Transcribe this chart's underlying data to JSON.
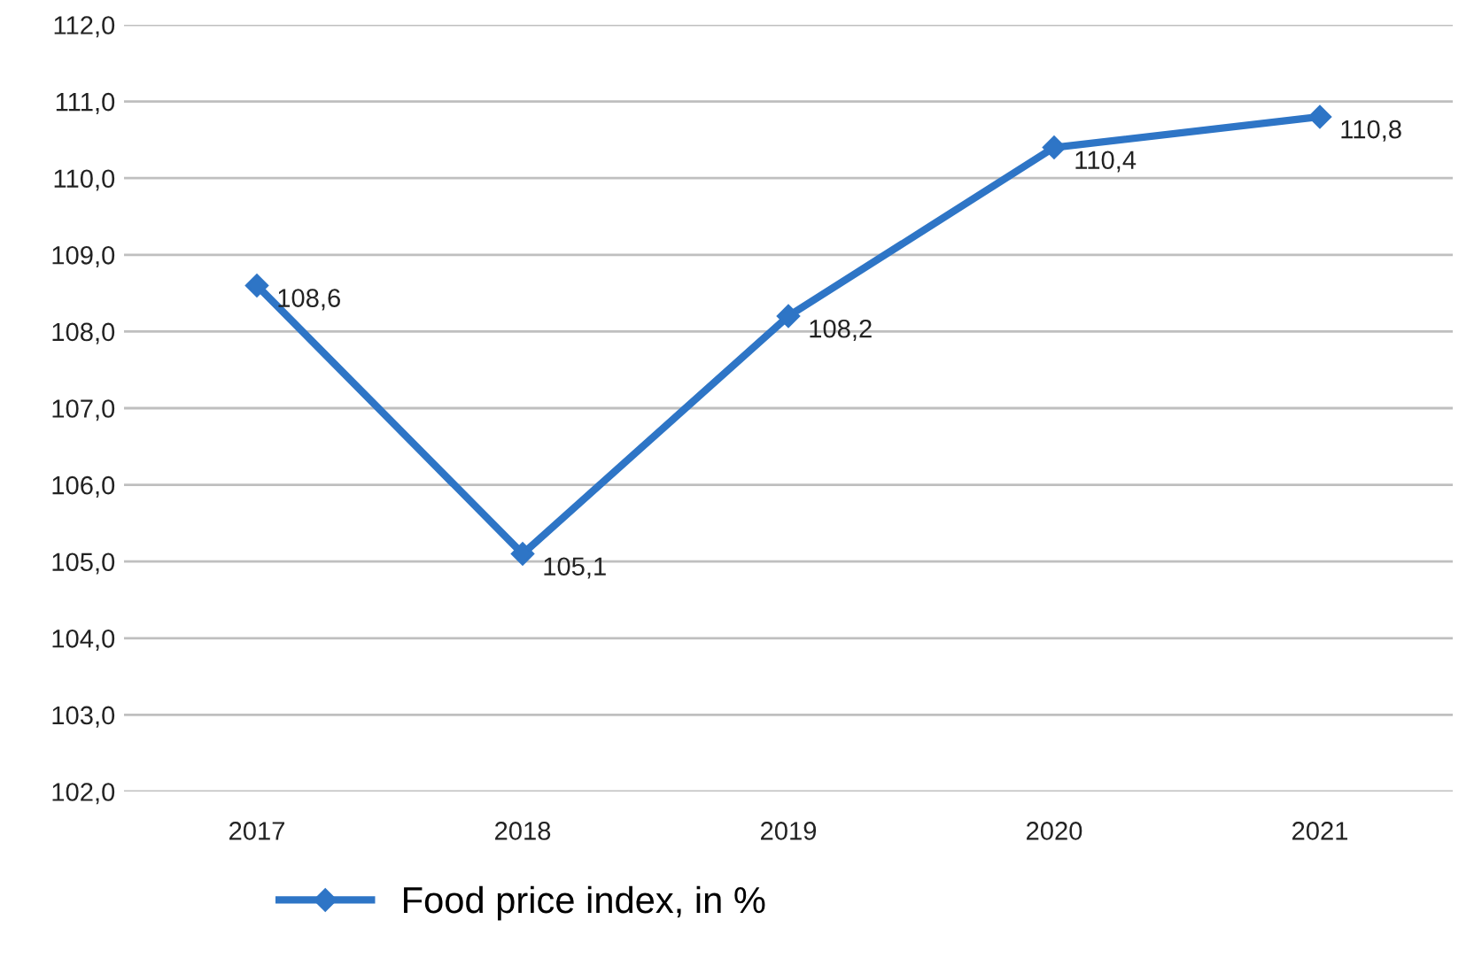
{
  "chart_data": {
    "type": "line",
    "categories": [
      "2017",
      "2018",
      "2019",
      "2020",
      "2021"
    ],
    "series": [
      {
        "name": "Food price index, in %",
        "color": "#2e75c6",
        "values": [
          108.6,
          105.1,
          108.2,
          110.4,
          110.8
        ],
        "value_labels": [
          "108,6",
          "105,1",
          "108,2",
          "110,4",
          "110,8"
        ]
      }
    ],
    "ylim": [
      102,
      112
    ],
    "yticks": [
      {
        "value": 102,
        "label": "102,0"
      },
      {
        "value": 103,
        "label": "103,0"
      },
      {
        "value": 104,
        "label": "104,0"
      },
      {
        "value": 105,
        "label": "105,0"
      },
      {
        "value": 106,
        "label": "106,0"
      },
      {
        "value": 107,
        "label": "107,0"
      },
      {
        "value": 108,
        "label": "108,0"
      },
      {
        "value": 109,
        "label": "109,0"
      },
      {
        "value": 110,
        "label": "110,0"
      },
      {
        "value": 111,
        "label": "111,0"
      },
      {
        "value": 112,
        "label": "112,0"
      }
    ],
    "grid": "y",
    "legend": "bottom",
    "marker": "diamond",
    "line_style": "solid"
  }
}
